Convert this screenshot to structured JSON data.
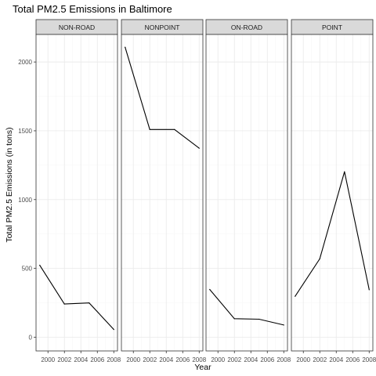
{
  "chart_data": {
    "type": "line",
    "title": "Total PM2.5 Emissions in Baltimore",
    "xlabel": "Year",
    "ylabel": "Total PM2.5 Emissions (in tons)",
    "x": [
      1999,
      2002,
      2005,
      2008
    ],
    "x_ticks": [
      2000,
      2002,
      2004,
      2006,
      2008
    ],
    "x_tick_labels": [
      "2000",
      "2002",
      "2004",
      "2006",
      "2008"
    ],
    "xlim": [
      1998.55,
      2008.45
    ],
    "y_ticks": [
      0,
      500,
      1000,
      1500,
      2000
    ],
    "y_tick_labels": [
      "0",
      "500",
      "1000",
      "1500",
      "2000"
    ],
    "ylim": [
      -100,
      2200
    ],
    "grid": true,
    "panels": [
      {
        "name": "NON-ROAD",
        "values": [
          522.94,
          240.85,
          248.93,
          55.82
        ]
      },
      {
        "name": "NONPOINT",
        "values": [
          2107.63,
          1509.5,
          1509.5,
          1373.21
        ]
      },
      {
        "name": "ON-ROAD",
        "values": [
          346.82,
          134.31,
          130.43,
          88.28
        ]
      },
      {
        "name": "POINT",
        "values": [
          296.8,
          569.26,
          1202.49,
          344.98
        ]
      }
    ],
    "colors": {
      "line": "#000000",
      "strip_fill": "#d9d9d9",
      "panel_border": "#333333",
      "grid_major": "#ebebeb",
      "grid_minor": "#f5f5f5"
    }
  }
}
